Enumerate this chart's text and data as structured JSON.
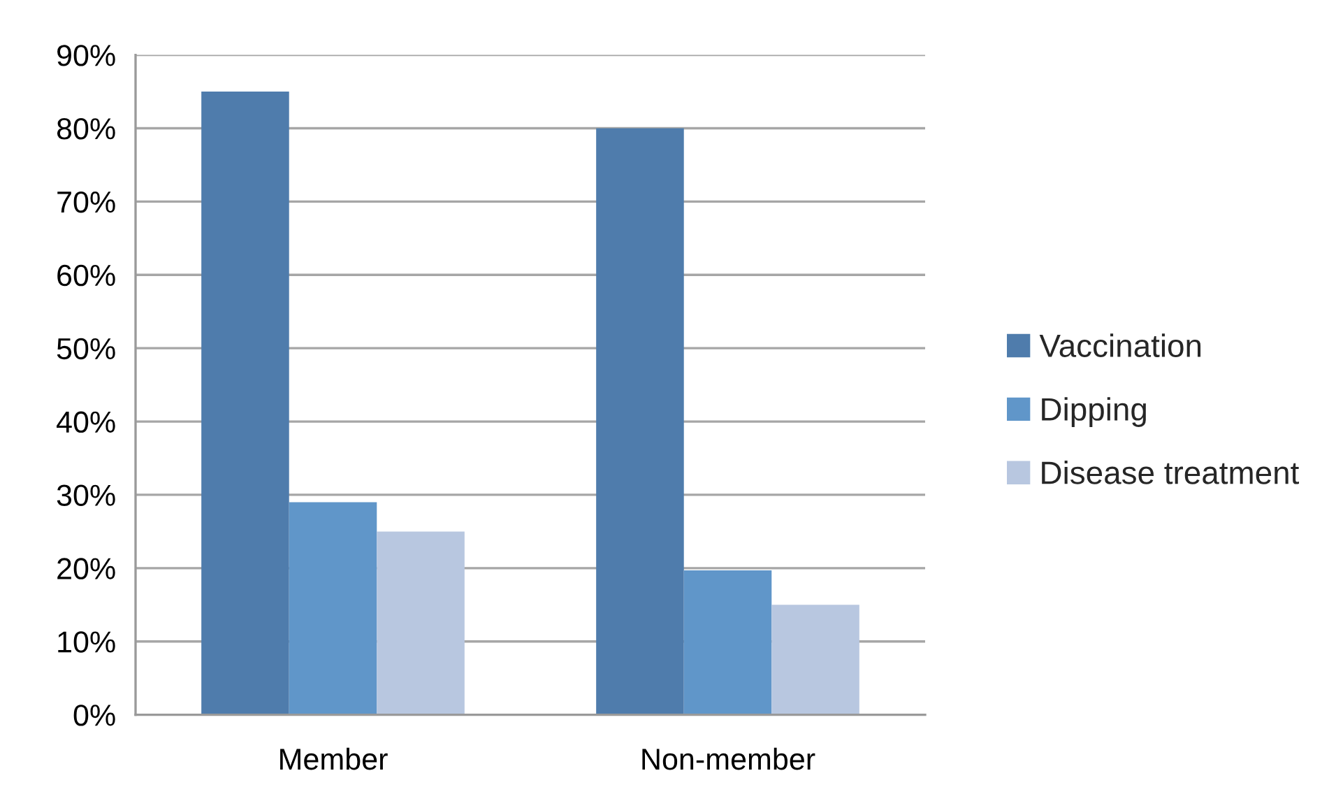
{
  "chart_data": {
    "type": "bar",
    "categories": [
      "Member",
      "Non-member"
    ],
    "series": [
      {
        "name": "Vaccination",
        "color": "#4f7cac",
        "values": [
          85,
          80
        ]
      },
      {
        "name": "Dipping",
        "color": "#6096c9",
        "values": [
          29,
          19.7
        ]
      },
      {
        "name": "Disease treatment",
        "color": "#b8c7e0",
        "values": [
          25,
          15
        ]
      }
    ],
    "ylim": [
      0,
      90
    ],
    "yticks": [
      {
        "value": 0,
        "label": "0%"
      },
      {
        "value": 10,
        "label": "10%"
      },
      {
        "value": 20,
        "label": "20%"
      },
      {
        "value": 30,
        "label": "30%"
      },
      {
        "value": 40,
        "label": "40%"
      },
      {
        "value": 50,
        "label": "50%"
      },
      {
        "value": 60,
        "label": "60%"
      },
      {
        "value": 70,
        "label": "70%"
      },
      {
        "value": 80,
        "label": "80%"
      },
      {
        "value": 90,
        "label": "90%"
      }
    ],
    "grid": "y",
    "legend": "right"
  }
}
